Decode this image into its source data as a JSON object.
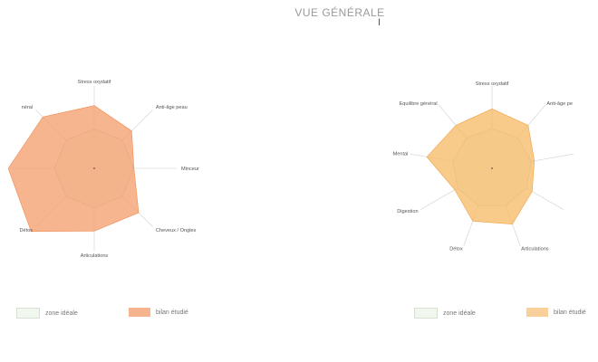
{
  "page": {
    "title": "VUE GÉNÉRALE"
  },
  "chart_data": [
    {
      "type": "radar",
      "axes": [
        "Stress oxydatif",
        "Anti-âge peau",
        "Minceur",
        "Cheveux / Ongles",
        "Articulations",
        "Détox",
        "",
        "néral"
      ],
      "scale_max": 100,
      "series": [
        {
          "name": "zone idéale",
          "values": [
            60,
            60,
            60,
            60,
            60,
            60,
            60,
            60
          ],
          "color": "#b0c4a8",
          "fill": "#f1f6ee"
        },
        {
          "name": "bilan étudié",
          "values": [
            95,
            80,
            60,
            95,
            95,
            135,
            130,
            110
          ],
          "color": "#f08a50",
          "fill": "#f4a06e"
        }
      ],
      "legend": [
        {
          "label": "zone idéale",
          "color": "#f1f6ee",
          "border": "#d6e2d0"
        },
        {
          "label": "bilan étudié",
          "color": "#f6b48e",
          "border": "#f6b48e"
        }
      ]
    },
    {
      "type": "radar",
      "axes": [
        "Stress oxydatif",
        "Anti-âge pe",
        "",
        "",
        "Articulations",
        "Détox",
        "Digestion",
        "Mental",
        "Equilibre général"
      ],
      "scale_max": 100,
      "series": [
        {
          "name": "zone idéale",
          "values": [
            60,
            60,
            60,
            60,
            60,
            60,
            60,
            60,
            60
          ],
          "color": "#b0c4a8",
          "fill": "#f1f6ee"
        },
        {
          "name": "bilan étudié",
          "values": [
            90,
            85,
            65,
            70,
            90,
            85,
            65,
            100,
            85
          ],
          "color": "#f0a040",
          "fill": "#f6bc6a"
        }
      ],
      "legend": [
        {
          "label": "zone idéale",
          "color": "#f1f6ee",
          "border": "#d6e2d0"
        },
        {
          "label": "bilan étudié",
          "color": "#f9cf9a",
          "border": "#f9cf9a"
        }
      ]
    }
  ]
}
